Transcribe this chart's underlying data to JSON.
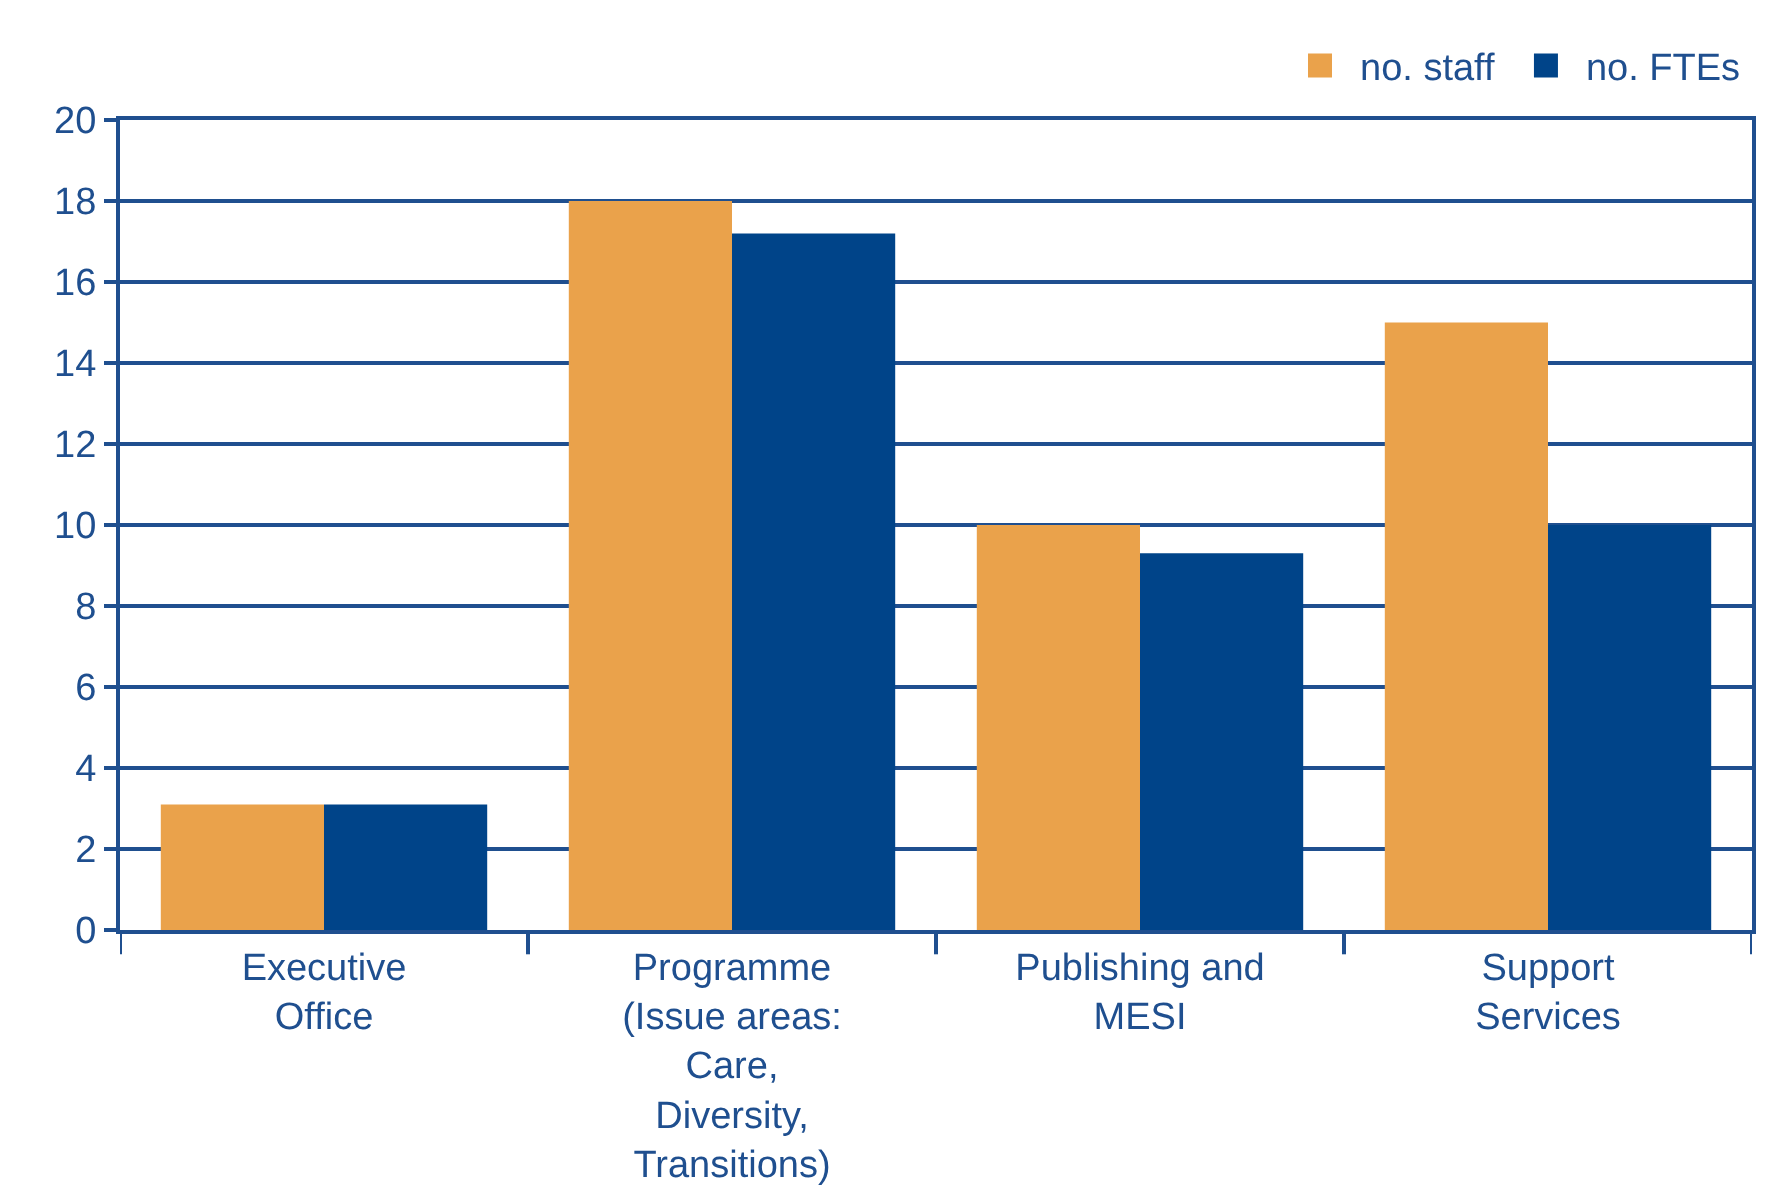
{
  "chart_data": {
    "type": "bar",
    "categories": [
      "Executive\nOffice",
      "Programme\n(Issue areas:\nCare,\nDiversity,\nTransitions)",
      "Publishing and\nMESI",
      "Support\nServices"
    ],
    "series": [
      {
        "name": "no. staff",
        "color": "#eaa24b",
        "values": [
          3.1,
          18,
          10,
          15
        ]
      },
      {
        "name": "no. FTEs",
        "color": "#004489",
        "values": [
          3.1,
          17.2,
          9.3,
          10
        ]
      }
    ],
    "ylim": [
      0,
      20
    ],
    "yticks": [
      0,
      2,
      4,
      6,
      8,
      10,
      12,
      14,
      16,
      18,
      20
    ],
    "grid": "y",
    "legend": "top right"
  }
}
